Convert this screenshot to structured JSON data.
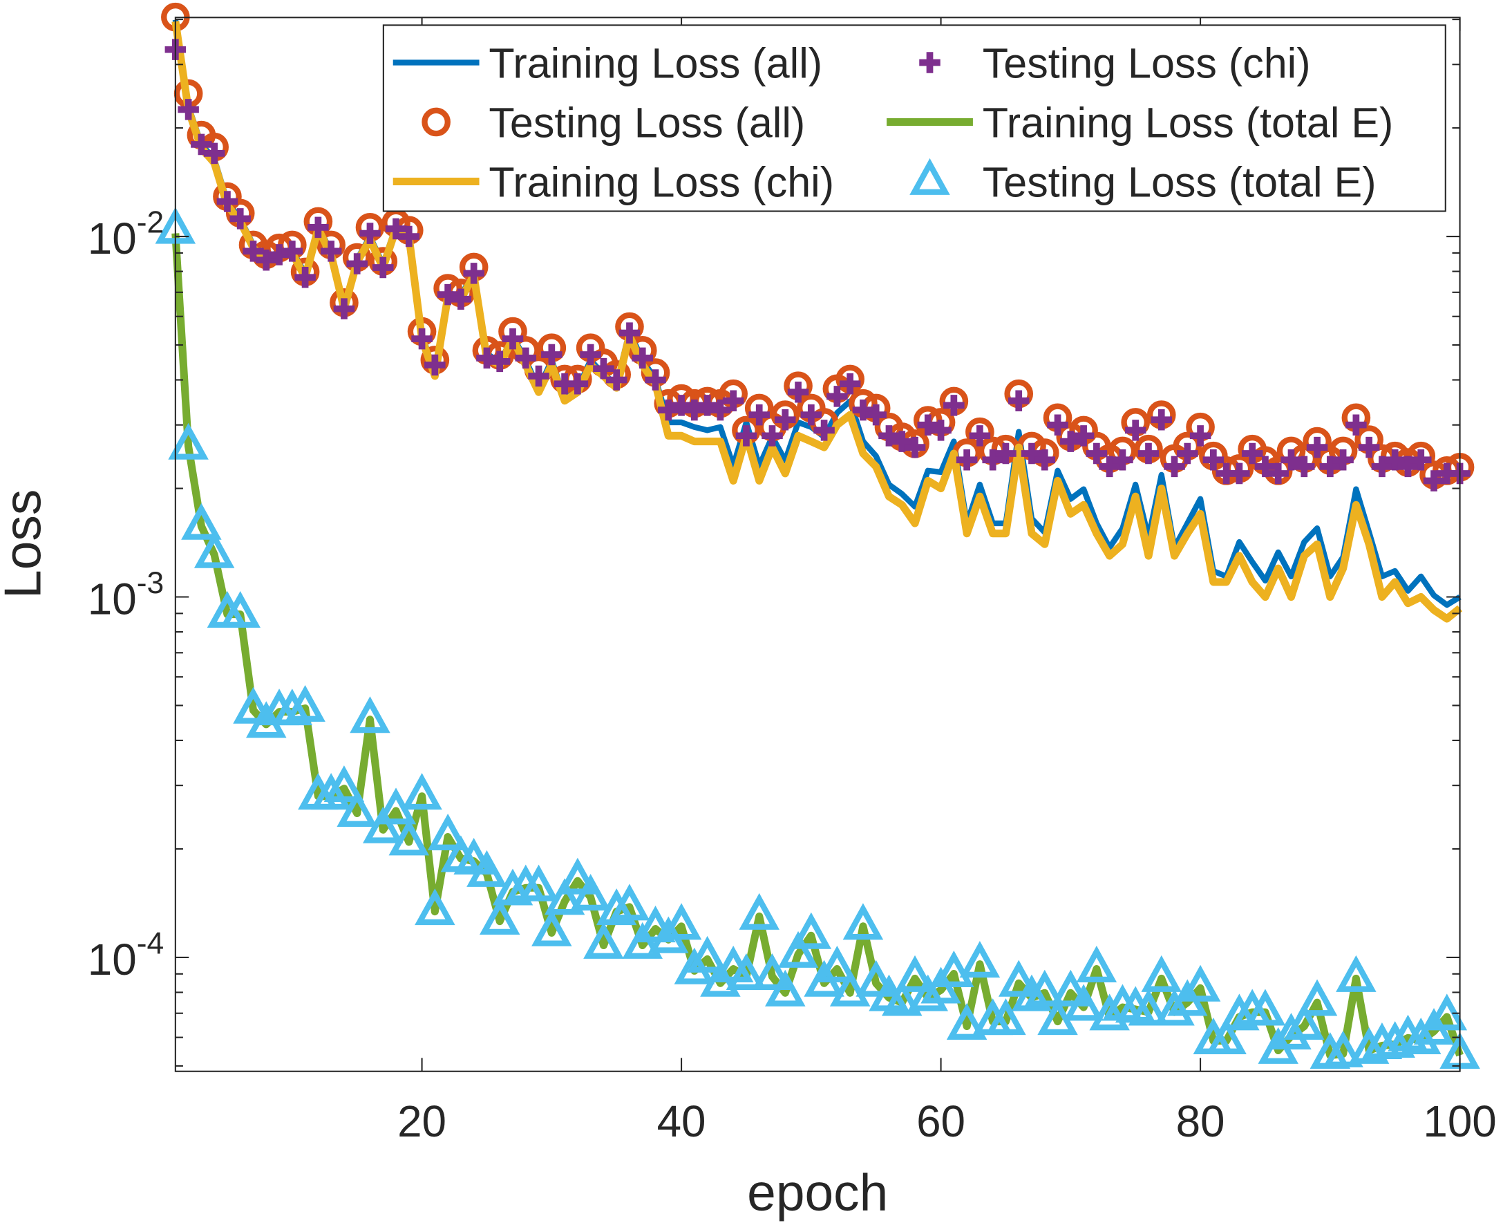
{
  "chart_data": {
    "type": "line",
    "title": "",
    "xlabel": "epoch",
    "ylabel": "Loss",
    "yscale": "log",
    "xlim": [
      1,
      100
    ],
    "ylim": [
      4.83e-05,
      0.0405
    ],
    "grid": false,
    "legend_placement": "top-right",
    "x_ticks": [
      20,
      40,
      60,
      80,
      100
    ],
    "x_tick_labels": [
      "20",
      "40",
      "60",
      "80",
      "100"
    ],
    "y_ticks": [
      0.01,
      0.001,
      0.0001
    ],
    "y_tick_labels": [
      {
        "base": "10",
        "exp": "-2"
      },
      {
        "base": "10",
        "exp": "-3"
      },
      {
        "base": "10",
        "exp": "-4"
      }
    ],
    "series": [
      {
        "name": "Training Loss (all)",
        "style": "line",
        "color": "#0072BD",
        "values": [
          0.0399,
          0.023,
          0.018,
          0.0164,
          0.0125,
          0.0112,
          0.00947,
          0.00874,
          0.00906,
          0.00918,
          0.00787,
          0.0107,
          0.00906,
          0.00644,
          0.00863,
          0.01,
          0.00837,
          0.0107,
          0.0102,
          0.00535,
          0.00414,
          0.00697,
          0.00684,
          0.00797,
          0.00474,
          0.00446,
          0.00529,
          0.00454,
          0.00378,
          0.00454,
          0.00355,
          0.00378,
          0.00454,
          0.00414,
          0.00389,
          0.00545,
          0.00454,
          0.00402,
          0.00305,
          0.00305,
          0.00296,
          0.0029,
          0.00296,
          0.00231,
          0.00305,
          0.00231,
          0.00278,
          0.00239,
          0.00305,
          0.00296,
          0.00278,
          0.00324,
          0.00349,
          0.0027,
          0.00246,
          0.00205,
          0.00193,
          0.00178,
          0.00224,
          0.00222,
          0.0027,
          0.0016,
          0.00205,
          0.0016,
          0.0016,
          0.00287,
          0.00165,
          0.00151,
          0.00224,
          0.00187,
          0.00199,
          0.0016,
          0.00137,
          0.00155,
          0.00205,
          0.00146,
          0.00218,
          0.00137,
          0.0016,
          0.00187,
          0.00118,
          0.00114,
          0.00142,
          0.00125,
          0.00111,
          0.00133,
          0.00114,
          0.00142,
          0.00155,
          0.00114,
          0.00129,
          0.00199,
          0.00151,
          0.00114,
          0.00118,
          0.00104,
          0.00114,
          0.00101,
          0.00095,
          0.001
        ]
      },
      {
        "name": "Testing Loss (all)",
        "style": "circle",
        "color": "#D95319",
        "values": [
          0.0406,
          0.0249,
          0.0191,
          0.0177,
          0.0129,
          0.0116,
          0.00947,
          0.0089,
          0.00929,
          0.00947,
          0.00797,
          0.011,
          0.00947,
          0.00655,
          0.00874,
          0.0106,
          0.00853,
          0.0109,
          0.0104,
          0.00545,
          0.00454,
          0.00718,
          0.00697,
          0.00822,
          0.00483,
          0.00468,
          0.00545,
          0.00483,
          0.00427,
          0.00491,
          0.00402,
          0.00402,
          0.00491,
          0.00446,
          0.00414,
          0.00562,
          0.00483,
          0.00419,
          0.00344,
          0.00355,
          0.00344,
          0.00349,
          0.00344,
          0.00366,
          0.0029,
          0.00334,
          0.00296,
          0.0032,
          0.00385,
          0.00334,
          0.00305,
          0.00378,
          0.00402,
          0.00344,
          0.00334,
          0.00296,
          0.00278,
          0.00266,
          0.00309,
          0.00305,
          0.00349,
          0.00251,
          0.00287,
          0.00254,
          0.00257,
          0.00366,
          0.00262,
          0.00251,
          0.00314,
          0.00278,
          0.0029,
          0.00262,
          0.00242,
          0.00254,
          0.00305,
          0.00257,
          0.0032,
          0.00242,
          0.00262,
          0.00296,
          0.00246,
          0.00224,
          0.00227,
          0.00257,
          0.00239,
          0.00224,
          0.00254,
          0.00242,
          0.0027,
          0.00239,
          0.00254,
          0.00314,
          0.00273,
          0.00242,
          0.00246,
          0.00236,
          0.00246,
          0.00218,
          0.00224,
          0.00229
        ]
      },
      {
        "name": "Training Loss (chi)",
        "style": "line",
        "color": "#EDB120",
        "values": [
          0.0395,
          0.0225,
          0.0176,
          0.016,
          0.0122,
          0.011,
          0.0093,
          0.0086,
          0.0089,
          0.009,
          0.0077,
          0.0105,
          0.0089,
          0.0063,
          0.0085,
          0.0098,
          0.0082,
          0.0105,
          0.01,
          0.0052,
          0.0041,
          0.0068,
          0.0067,
          0.0078,
          0.0046,
          0.0044,
          0.0052,
          0.0044,
          0.0037,
          0.0044,
          0.0035,
          0.0037,
          0.0044,
          0.0041,
          0.0038,
          0.0053,
          0.0044,
          0.0039,
          0.0028,
          0.0028,
          0.0027,
          0.0027,
          0.0027,
          0.0021,
          0.0028,
          0.0021,
          0.0026,
          0.0022,
          0.0028,
          0.0027,
          0.0026,
          0.003,
          0.0032,
          0.0025,
          0.0023,
          0.0019,
          0.0018,
          0.0016,
          0.0021,
          0.002,
          0.0025,
          0.0015,
          0.0019,
          0.0015,
          0.0015,
          0.0026,
          0.0015,
          0.0014,
          0.0021,
          0.0017,
          0.0018,
          0.0015,
          0.0013,
          0.0014,
          0.0019,
          0.0013,
          0.002,
          0.0013,
          0.0015,
          0.0017,
          0.0011,
          0.0011,
          0.0013,
          0.0011,
          0.001,
          0.0012,
          0.001,
          0.0013,
          0.0014,
          0.001,
          0.0012,
          0.0018,
          0.0014,
          0.001,
          0.0011,
          0.00096,
          0.001,
          0.00092,
          0.00087,
          0.00093
        ]
      },
      {
        "name": "Testing Loss (chi)",
        "style": "plus",
        "color": "#7E2F8E",
        "values": [
          0.033,
          0.0225,
          0.018,
          0.017,
          0.0125,
          0.0112,
          0.0091,
          0.0086,
          0.0089,
          0.0091,
          0.0077,
          0.0106,
          0.0091,
          0.0063,
          0.0084,
          0.0102,
          0.0082,
          0.0105,
          0.01,
          0.0052,
          0.0044,
          0.0069,
          0.0067,
          0.0079,
          0.0046,
          0.0045,
          0.0052,
          0.0046,
          0.0041,
          0.0047,
          0.0039,
          0.0039,
          0.0047,
          0.0043,
          0.004,
          0.0054,
          0.0046,
          0.004,
          0.0033,
          0.0034,
          0.0033,
          0.0034,
          0.0033,
          0.0035,
          0.0028,
          0.0032,
          0.0028,
          0.0031,
          0.0037,
          0.0032,
          0.0029,
          0.0036,
          0.0039,
          0.0033,
          0.0032,
          0.0028,
          0.0027,
          0.0026,
          0.003,
          0.0029,
          0.0034,
          0.0024,
          0.0028,
          0.0024,
          0.0025,
          0.0035,
          0.0025,
          0.0024,
          0.003,
          0.0027,
          0.0028,
          0.0025,
          0.0023,
          0.0024,
          0.0029,
          0.0025,
          0.0031,
          0.0023,
          0.0025,
          0.0028,
          0.0024,
          0.0022,
          0.0022,
          0.0025,
          0.0023,
          0.0022,
          0.0024,
          0.0023,
          0.0026,
          0.0023,
          0.0024,
          0.003,
          0.0026,
          0.0023,
          0.0024,
          0.0023,
          0.0024,
          0.0021,
          0.0022,
          0.0022
        ]
      },
      {
        "name": "Training Loss (total E)",
        "style": "line",
        "color": "#77AC30",
        "values": [
          0.0102,
          0.00262,
          0.00157,
          0.00131,
          0.000895,
          0.000895,
          0.000485,
          0.000443,
          0.00048,
          0.00048,
          0.000491,
          0.00028,
          0.00028,
          0.000294,
          0.000251,
          0.000457,
          0.000226,
          0.000255,
          0.000209,
          0.00028,
          0.000134,
          0.000216,
          0.000188,
          0.000185,
          0.000171,
          0.000126,
          0.000152,
          0.000156,
          0.000156,
          0.000117,
          0.000143,
          0.000163,
          0.000147,
          0.000108,
          0.000134,
          0.000138,
          0.000108,
          0.00012,
          0.000112,
          0.000122,
          9.18e-05,
          9.89e-05,
          8.48e-05,
          9.29e-05,
          8.85e-05,
          0.00013,
          8.85e-05,
          7.97e-05,
          0.000102,
          0.000115,
          8.48e-05,
          9.29e-05,
          7.97e-05,
          0.000122,
          8.48e-05,
          7.73e-05,
          7.5e-05,
          8.74e-05,
          7.73e-05,
          8.12e-05,
          9.01e-05,
          6.44e-05,
          9.58e-05,
          6.64e-05,
          6.64e-05,
          8.48e-05,
          7.73e-05,
          7.97e-05,
          6.64e-05,
          7.97e-05,
          7.27e-05,
          9.29e-05,
          6.84e-05,
          7.27e-05,
          7.18e-05,
          7.05e-05,
          8.74e-05,
          7.05e-05,
          7.5e-05,
          8.22e-05,
          5.87e-05,
          5.87e-05,
          6.84e-05,
          7.05e-05,
          7.05e-05,
          5.52e-05,
          6.05e-05,
          6.44e-05,
          7.5e-05,
          5.35e-05,
          5.4e-05,
          8.74e-05,
          5.52e-05,
          5.69e-05,
          5.74e-05,
          5.98e-05,
          5.87e-05,
          6.24e-05,
          6.84e-05,
          5.35e-05
        ]
      },
      {
        "name": "Testing Loss (total E)",
        "style": "triangle",
        "color": "#4DBEEE",
        "values": [
          0.0104,
          0.00262,
          0.00157,
          0.00131,
          0.000895,
          0.000895,
          0.000485,
          0.000443,
          0.00048,
          0.00048,
          0.000491,
          0.00028,
          0.00028,
          0.000294,
          0.000251,
          0.000457,
          0.000226,
          0.000255,
          0.000209,
          0.00028,
          0.000134,
          0.000216,
          0.000188,
          0.000185,
          0.000171,
          0.000126,
          0.000152,
          0.000156,
          0.000156,
          0.000117,
          0.000143,
          0.000163,
          0.000147,
          0.000108,
          0.000134,
          0.000138,
          0.000108,
          0.00012,
          0.000112,
          0.000122,
          9.18e-05,
          9.89e-05,
          8.48e-05,
          9.29e-05,
          8.85e-05,
          0.00013,
          8.85e-05,
          7.97e-05,
          0.000102,
          0.000115,
          8.48e-05,
          9.29e-05,
          7.97e-05,
          0.000122,
          8.48e-05,
          7.73e-05,
          7.5e-05,
          8.74e-05,
          7.73e-05,
          8.12e-05,
          9.01e-05,
          6.44e-05,
          9.58e-05,
          6.64e-05,
          6.64e-05,
          8.48e-05,
          7.73e-05,
          7.97e-05,
          6.64e-05,
          7.97e-05,
          7.27e-05,
          9.29e-05,
          6.84e-05,
          7.27e-05,
          7.18e-05,
          7.05e-05,
          8.74e-05,
          7.05e-05,
          7.5e-05,
          8.22e-05,
          5.87e-05,
          5.87e-05,
          6.84e-05,
          7.05e-05,
          7.05e-05,
          5.52e-05,
          6.05e-05,
          6.44e-05,
          7.5e-05,
          5.35e-05,
          5.4e-05,
          8.74e-05,
          5.52e-05,
          5.69e-05,
          5.74e-05,
          5.98e-05,
          5.87e-05,
          6.24e-05,
          6.84e-05,
          5.35e-05
        ]
      }
    ]
  }
}
